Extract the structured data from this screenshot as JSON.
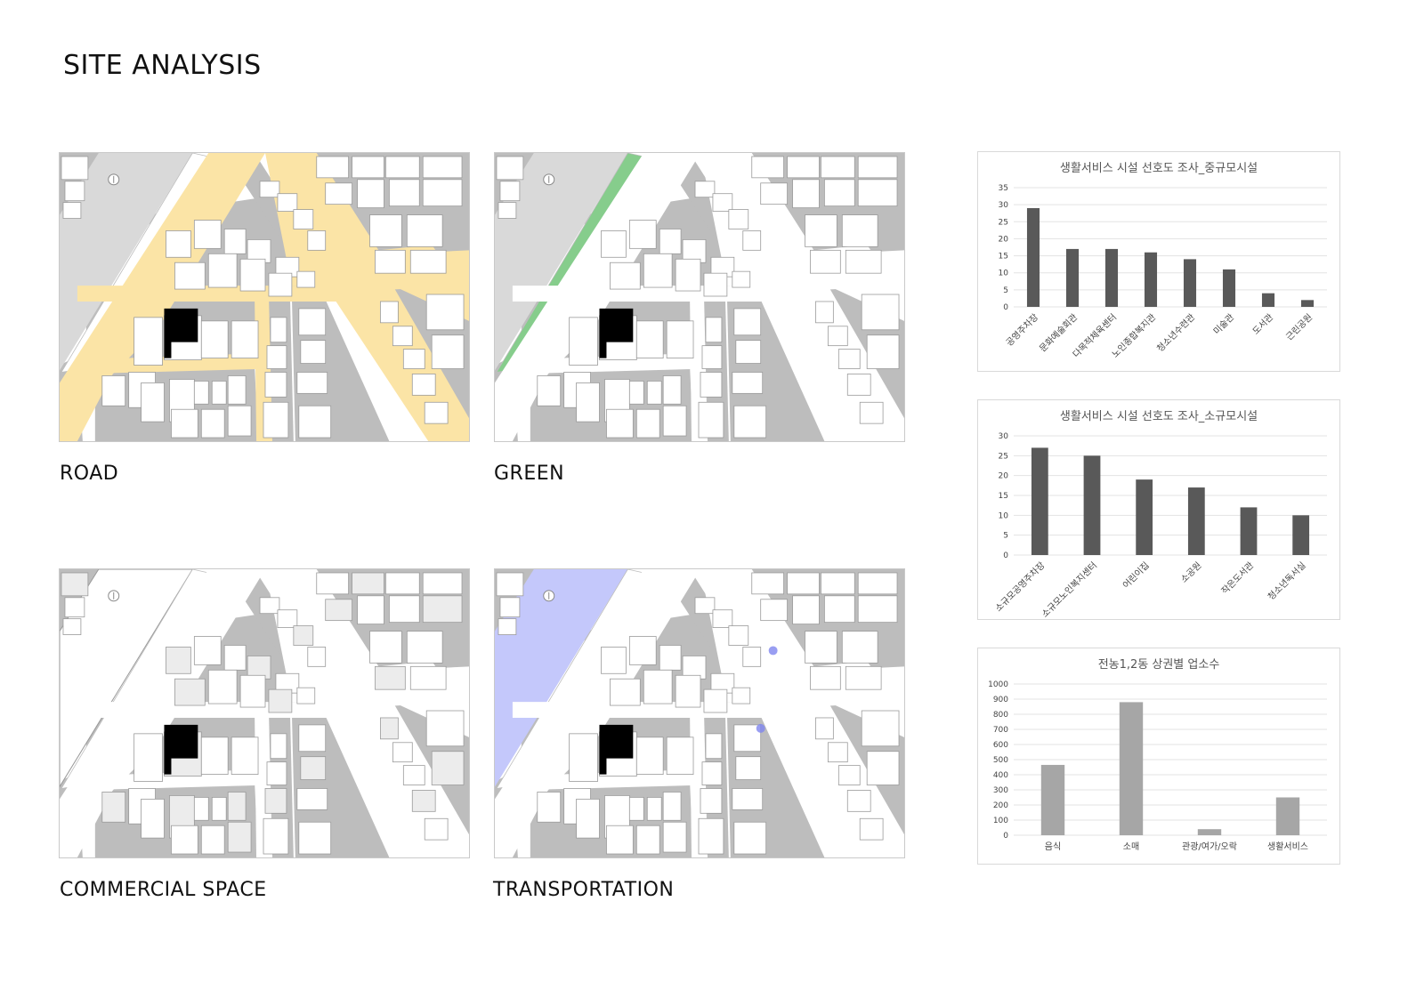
{
  "page": {
    "title": "SITE ANALYSIS"
  },
  "maps": [
    {
      "id": "road",
      "label": "ROAD",
      "highlight": "road",
      "color": "#fbe4a6"
    },
    {
      "id": "green",
      "label": "GREEN",
      "highlight": "green",
      "color": "#86cd8c"
    },
    {
      "id": "commercial",
      "label": "COMMERCIAL SPACE",
      "highlight": "commercial",
      "color": "#ececec"
    },
    {
      "id": "transportation",
      "label": "TRANSPORTATION",
      "highlight": "transport",
      "color": "#c4c8fb"
    }
  ],
  "colors": {
    "building": "#bdbdbd",
    "building_outline": "#9a9a9a",
    "site": "#000000",
    "river": "#d9d9d9",
    "bus_stop": "#7f86ef",
    "bar_dark": "#595959",
    "bar_light": "#a6a6a6"
  },
  "chart_data": [
    {
      "type": "bar",
      "title": "생활서비스 시설 선호도 조사_중규모시설",
      "categories": [
        "공영주차장",
        "문화예술회관",
        "다목적체육센터",
        "노인종합복지관",
        "청소년수련관",
        "미술관",
        "도서관",
        "근린공원"
      ],
      "values": [
        29,
        17,
        17,
        16,
        14,
        11,
        4,
        2
      ],
      "ylim": [
        0,
        35
      ],
      "yticks": [
        0,
        5,
        10,
        15,
        20,
        25,
        30,
        35
      ],
      "color": "#595959"
    },
    {
      "type": "bar",
      "title": "생활서비스 시설 선호도 조사_소규모시설",
      "categories": [
        "소규모공영주차장",
        "소규모노인복지센터",
        "어린이집",
        "소공원",
        "작은도서관",
        "청소년독서실"
      ],
      "values": [
        27,
        25,
        19,
        17,
        12,
        10
      ],
      "ylim": [
        0,
        30
      ],
      "yticks": [
        0,
        5,
        10,
        15,
        20,
        25,
        30
      ],
      "color": "#595959"
    },
    {
      "type": "bar",
      "title": "전농1,2동 상권별 업소수",
      "categories": [
        "음식",
        "소매",
        "관광/여가/오락",
        "생활서비스"
      ],
      "values": [
        465,
        880,
        40,
        250
      ],
      "ylim": [
        0,
        1000
      ],
      "yticks": [
        0,
        100,
        200,
        300,
        400,
        500,
        600,
        700,
        800,
        900,
        1000
      ],
      "color": "#a6a6a6"
    }
  ]
}
